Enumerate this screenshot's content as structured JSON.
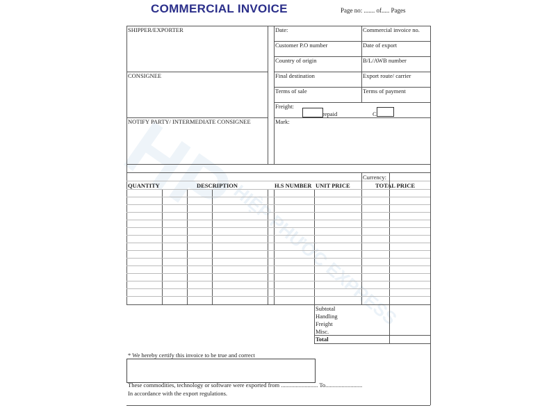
{
  "header": {
    "title": "COMMERCIAL INVOICE",
    "page_no": "Page no: ....... of..... Pages"
  },
  "parties": {
    "shipper": "SHIPPER/EXPORTER",
    "consignee": "CONSIGNEE",
    "notify": "NOTIFY PARTY/ INTERMEDIATE CONSIGNEE"
  },
  "fields": {
    "date": "Date:",
    "invoice_no": "Commercial invoice no.",
    "po_number": "Customer P.O number",
    "date_export": "Date of export",
    "country_origin": "Country of origin",
    "bl_awb": "B/L/AWB number",
    "final_destination": "Final destination",
    "export_route": "Export route/ carrier",
    "terms_sale": "Terms of sale",
    "terms_payment": "Terms of payment",
    "freight": "Freight:",
    "prepaid": "repaid",
    "collect": "C",
    "mark": "Mark:"
  },
  "table": {
    "currency": "Currency:",
    "columns": [
      "QUANTITY",
      "DESCRIPTION",
      "H.S NUMBER",
      "UNIT PRICE",
      "TOTAL PRICE"
    ]
  },
  "totals": [
    "Subtotal",
    "Handling",
    "Freight",
    "Misc.",
    "Total"
  ],
  "footer": {
    "certify": "* We hereby certify this invoice to be true and correct",
    "exported": "These commodities, technology or software were exported from ......................... To.........................",
    "regulations": "In accordance with the export regulations."
  },
  "watermark": {
    "logo": "HP",
    "name": "HIỆP PHƯỚC EXPRESS",
    "color": "#78aad2"
  },
  "colors": {
    "title": "#2b2f8a"
  }
}
